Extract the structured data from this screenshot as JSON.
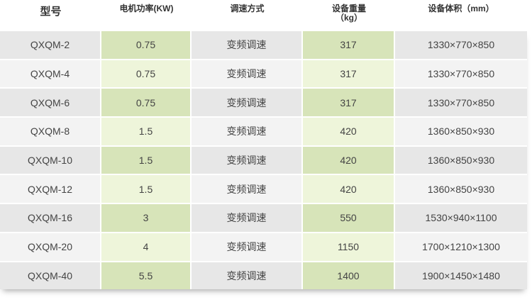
{
  "header": {
    "model": "型号",
    "power": "电机功率(KW)",
    "speed_mode": "调速方式",
    "weight": "设备重量",
    "weight_unit": "（kg）",
    "volume": "设备体积（mm）"
  },
  "rows": [
    {
      "model": "QXQM-2",
      "power": "0.75",
      "speed": "变频调速",
      "weight": "317",
      "volume": "1330×770×850"
    },
    {
      "model": "QXQM-4",
      "power": "0.75",
      "speed": "变频调速",
      "weight": "317",
      "volume": "1330×770×850"
    },
    {
      "model": "QXQM-6",
      "power": "0.75",
      "speed": "变频调速",
      "weight": "317",
      "volume": "1330×770×850"
    },
    {
      "model": "QXQM-8",
      "power": "1.5",
      "speed": "变频调速",
      "weight": "420",
      "volume": "1360×850×930"
    },
    {
      "model": "QXQM-10",
      "power": "1.5",
      "speed": "变频调速",
      "weight": "420",
      "volume": "1360×850×930"
    },
    {
      "model": "QXQM-12",
      "power": "1.5",
      "speed": "变频调速",
      "weight": "420",
      "volume": "1360×850×930"
    },
    {
      "model": "QXQM-16",
      "power": "3",
      "speed": "变频调速",
      "weight": "550",
      "volume": "1530×940×1100"
    },
    {
      "model": "QXQM-20",
      "power": "4",
      "speed": "变频调速",
      "weight": "1150",
      "volume": "1700×1210×1300"
    },
    {
      "model": "QXQM-40",
      "power": "5.5",
      "speed": "变频调速",
      "weight": "1400",
      "volume": "1900×1450×1480"
    }
  ],
  "colors": {
    "green_dark": "#d7e4b9",
    "green_light": "#eef5da",
    "gray_dark": "#e7e7e7",
    "gray_light": "#f3f3f3"
  }
}
